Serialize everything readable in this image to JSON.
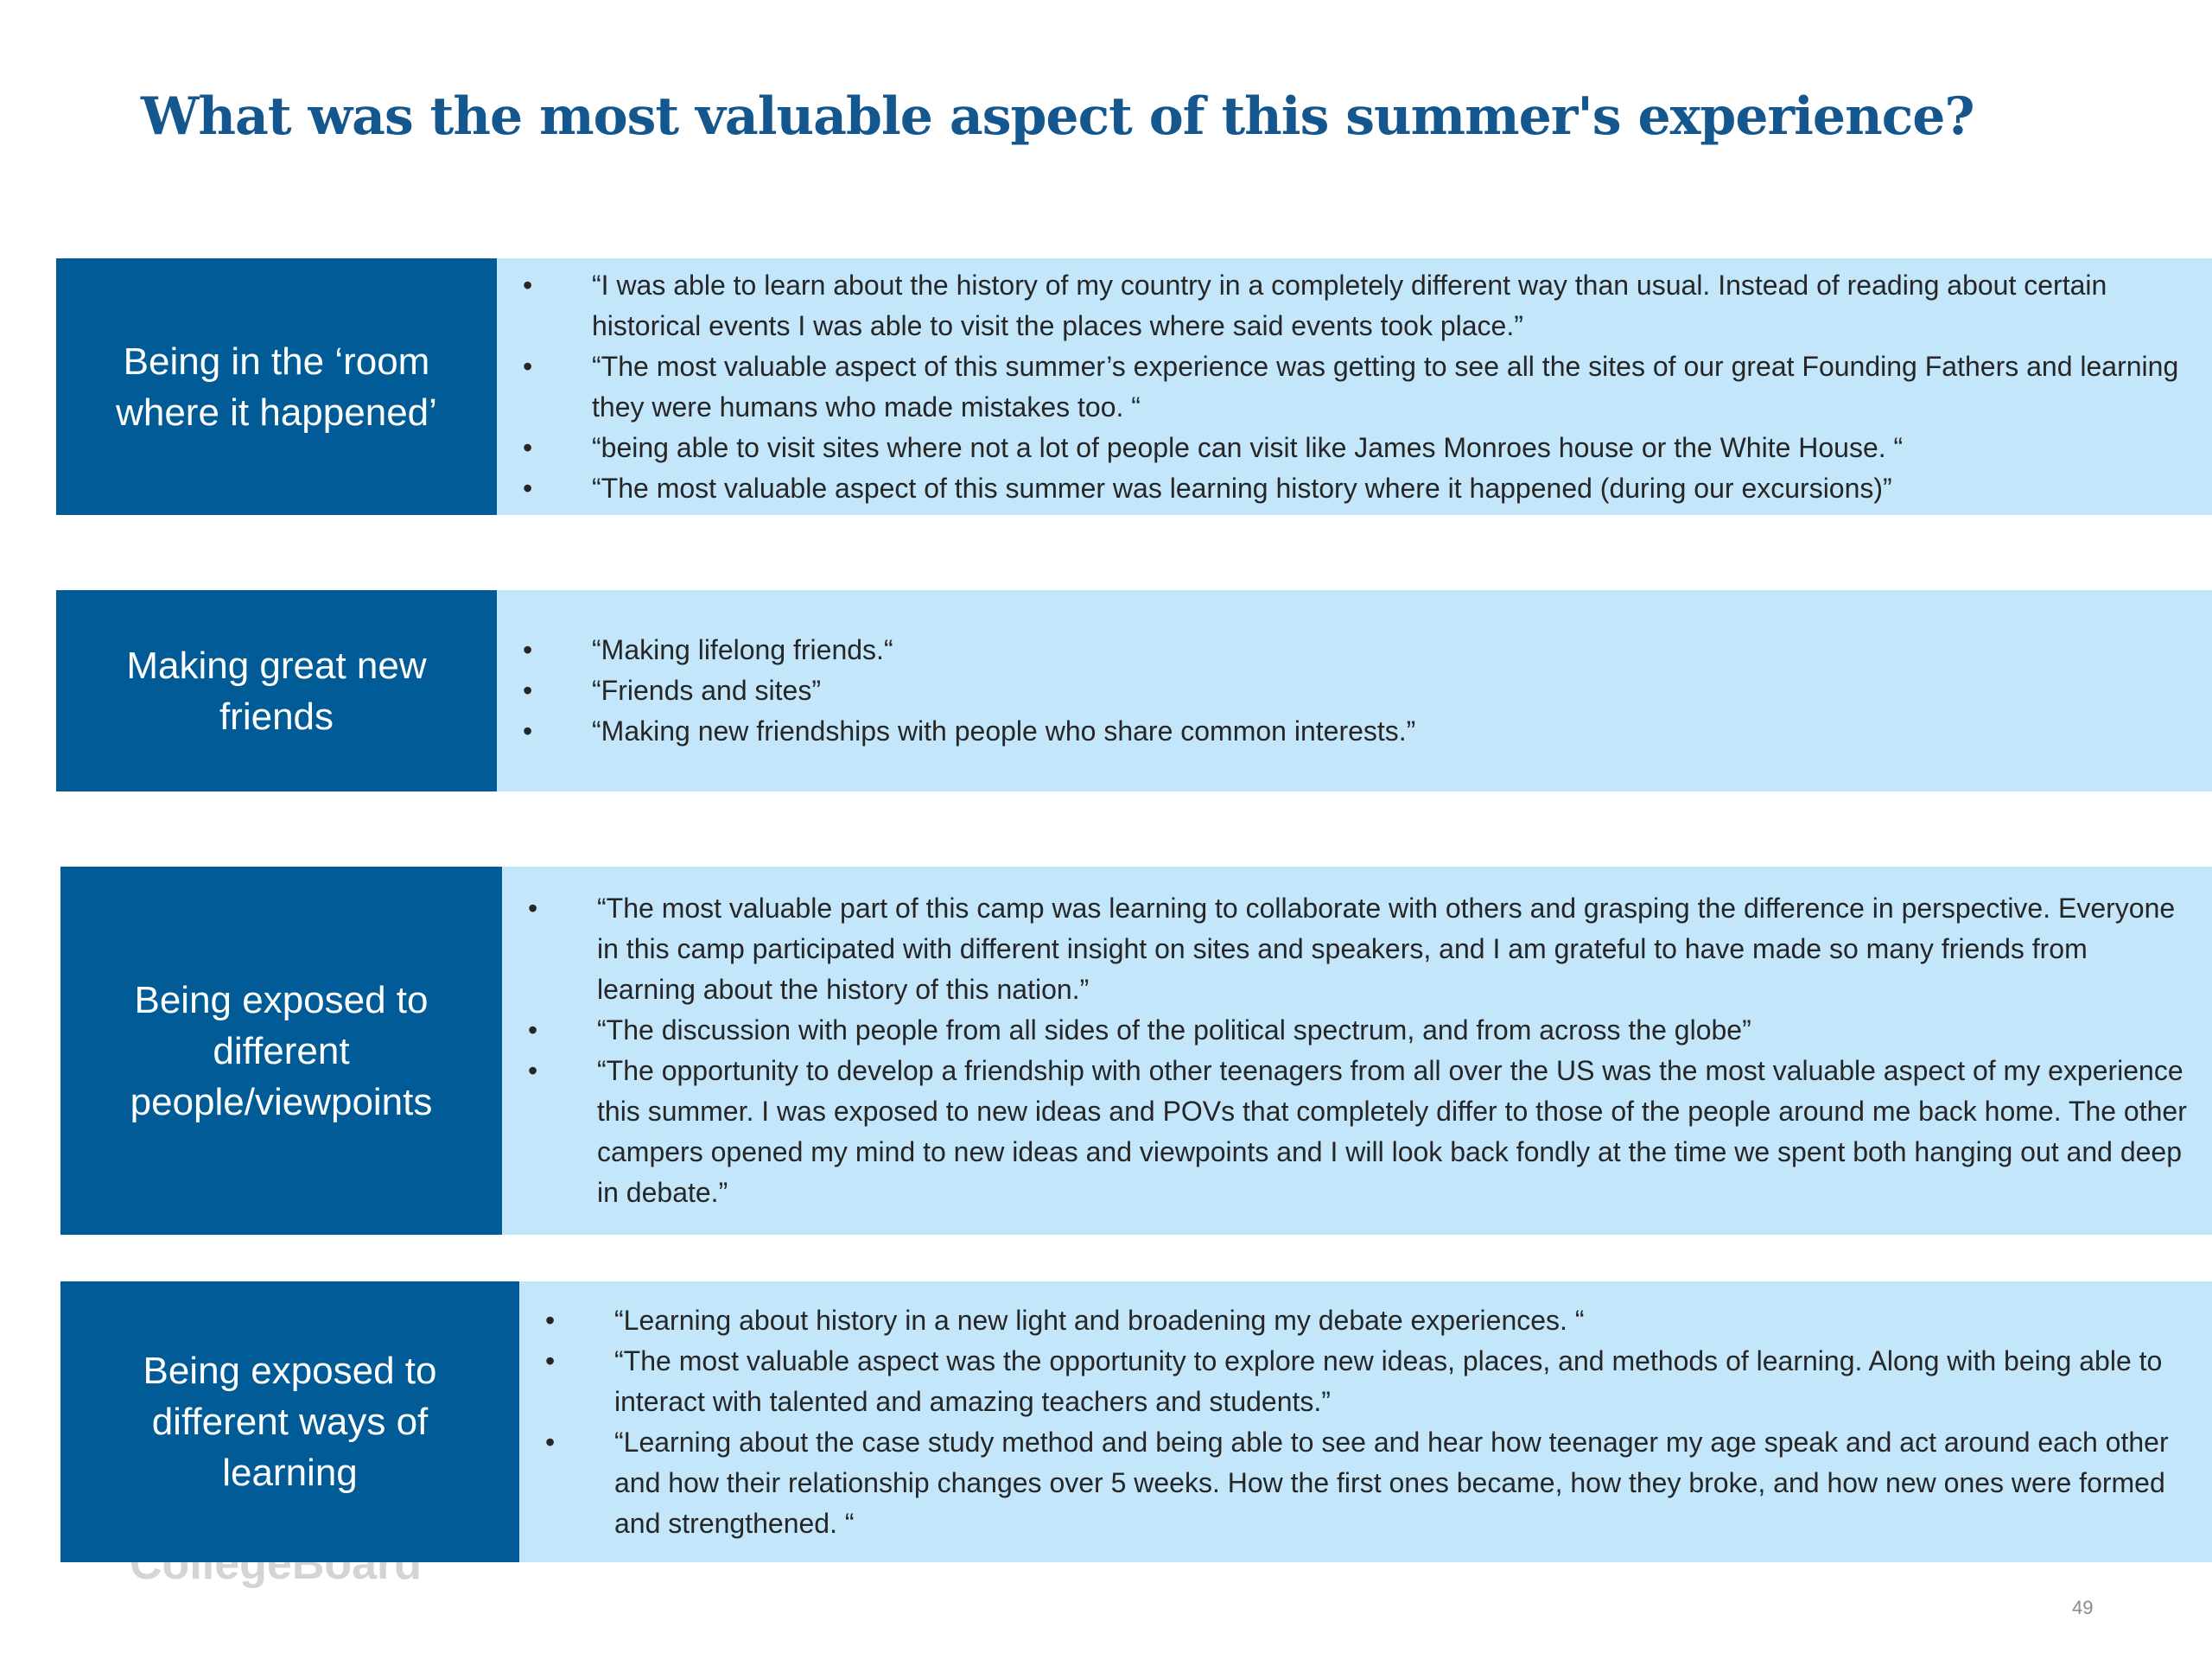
{
  "title": "What was the most valuable aspect of this summer's experience?",
  "sections": [
    {
      "label": "Being in the ‘room where it happened’",
      "quotes": [
        "“I was able to learn about the history of my country in a completely different way than usual. Instead of reading about certain historical events I was able to visit the places where said events took place.”",
        "“The most valuable aspect of this summer’s experience was getting to see all the sites of our great Founding Fathers and learning they were humans who made mistakes too. “",
        "“being able to visit sites where not a lot of people can visit like James Monroes house or the White House. “",
        "“The most valuable aspect of this summer was learning history where it happened (during our excursions)”"
      ]
    },
    {
      "label": "Making great new friends",
      "quotes": [
        "“Making lifelong friends.“",
        "“Friends and sites”",
        "“Making new friendships with people who share common interests.”"
      ]
    },
    {
      "label": "Being exposed to different people/viewpoints",
      "quotes": [
        "“The most valuable part of this camp was learning to collaborate with others and grasping the difference in perspective. Everyone in this camp participated with different insight on sites and speakers, and I am grateful to have made so many friends from learning about the history of this nation.”",
        "“The discussion with people from all sides of the political spectrum, and from across the globe”",
        "“The opportunity to develop a friendship with other teenagers from all over the US was the most valuable aspect of my experience this summer. I was exposed to new ideas and POVs that completely differ to those of the people around me back home. The other campers opened my mind to new ideas and viewpoints and I will look back fondly at the time we spent both hanging out and deep in debate.”"
      ]
    },
    {
      "label": "Being exposed to different ways of learning",
      "quotes": [
        "“Learning about history in a new light and broadening my debate experiences. “",
        "“The most valuable aspect was the opportunity to explore new ideas, places, and methods of learning. Along with being able to interact with talented and amazing teachers and students.”",
        "“Learning about the case study method and being able to see and hear how teenager my age speak and act around each other and how their relationship changes over 5 weeks. How the first ones became, how they broke, and how new ones were formed and strengthened. “"
      ]
    }
  ],
  "footer": {
    "logo": "CollegeBoard",
    "page_number": "49"
  }
}
